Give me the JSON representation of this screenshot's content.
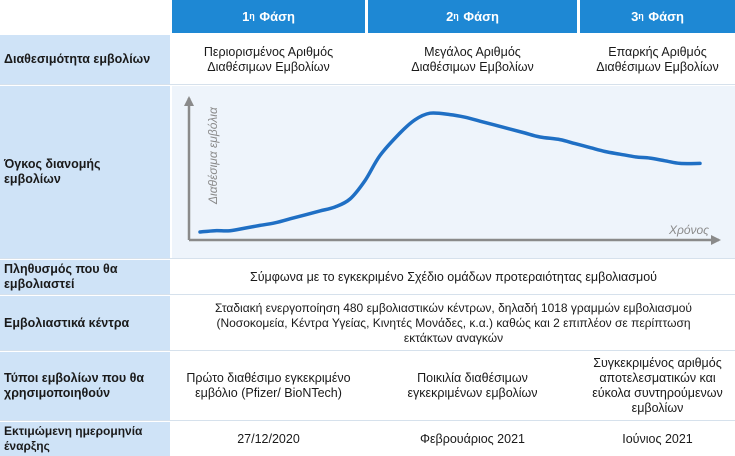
{
  "phases": [
    {
      "num": "1",
      "sup": "η",
      "word": "Φάση"
    },
    {
      "num": "2",
      "sup": "η",
      "word": "Φάση"
    },
    {
      "num": "3",
      "sup": "η",
      "word": "Φάση"
    }
  ],
  "rows": {
    "availability": {
      "label": "Διαθεσιμότητα εμβολίων",
      "cells": [
        [
          "Περιορισμένος Αριθμός",
          "Διαθέσιμων Εμβολίων"
        ],
        [
          "Μεγάλος Αριθμός",
          "Διαθέσιμων Εμβολίων"
        ],
        [
          "Επαρκής Αριθμός",
          "Διαθέσιμων Εμβολίων"
        ]
      ]
    },
    "volume": {
      "label": [
        "Όγκος διανομής",
        "εμβολίων"
      ]
    },
    "population": {
      "label": [
        "Πληθυσμός που θα",
        "εμβολιαστεί"
      ],
      "text": "Σύμφωνα με το εγκεκριμένο Σχέδιο ομάδων προτεραιότητας εμβολιασμού"
    },
    "centers": {
      "label": "Εμβολιαστικά κέντρα",
      "lines": [
        "Σταδιακή ενεργοποίηση 480 εμβολιαστικών κέντρων, δηλαδή 1018 γραμμών εμβολιασμού",
        "(Νοσοκομεία, Κέντρα Υγείας, Κινητές Μονάδες, κ.α.) καθώς και 2 επιπλέον σε περίπτωση",
        "εκτάκτων αναγκών"
      ]
    },
    "types": {
      "label": [
        "Τύποι εμβολίων που θα",
        "χρησιμοποιηθούν"
      ],
      "cells": [
        [
          "Πρώτο διαθέσιμο εγκεκριμένο",
          "εμβόλιο (Pfizer/ BioNTech)"
        ],
        [
          "Ποικιλία διαθέσιμων",
          "εγκεκριμένων εμβολίων"
        ],
        [
          "Συγκεκριμένος αριθμός",
          "αποτελεσματικών και",
          "εύκολα συντηρούμενων",
          "εμβολίων"
        ]
      ]
    },
    "start": {
      "label": [
        "Εκτιμώμενη ημερομηνία",
        "έναρξης"
      ],
      "cells": [
        "27/12/2020",
        "Φεβρουάριος 2021",
        "Ιούνιος 2021"
      ]
    }
  },
  "chart_data": {
    "type": "line",
    "xlabel": "Χρόνος",
    "ylabel": "Διαθέσιμα εμβόλια",
    "x": [
      0,
      3,
      6,
      9,
      12,
      15,
      18,
      21,
      24,
      27,
      30,
      33,
      36,
      40,
      43,
      46,
      50,
      53,
      56,
      59,
      62,
      65,
      68,
      72,
      75,
      78,
      81,
      84,
      87,
      90,
      93,
      96,
      100
    ],
    "series": [
      {
        "values": [
          3,
          4,
          4,
          6,
          8,
          10,
          13,
          16,
          19,
          22,
          28,
          42,
          61,
          78,
          88,
          93,
          92,
          90,
          87,
          84,
          81,
          78,
          75,
          73,
          70,
          67,
          64,
          62,
          60,
          59,
          57,
          55,
          55
        ]
      }
    ],
    "xlim": [
      0,
      100
    ],
    "ylim": [
      0,
      100
    ],
    "colors": {
      "line": "#1f6fc4",
      "axis": "#8a8a8a"
    }
  }
}
